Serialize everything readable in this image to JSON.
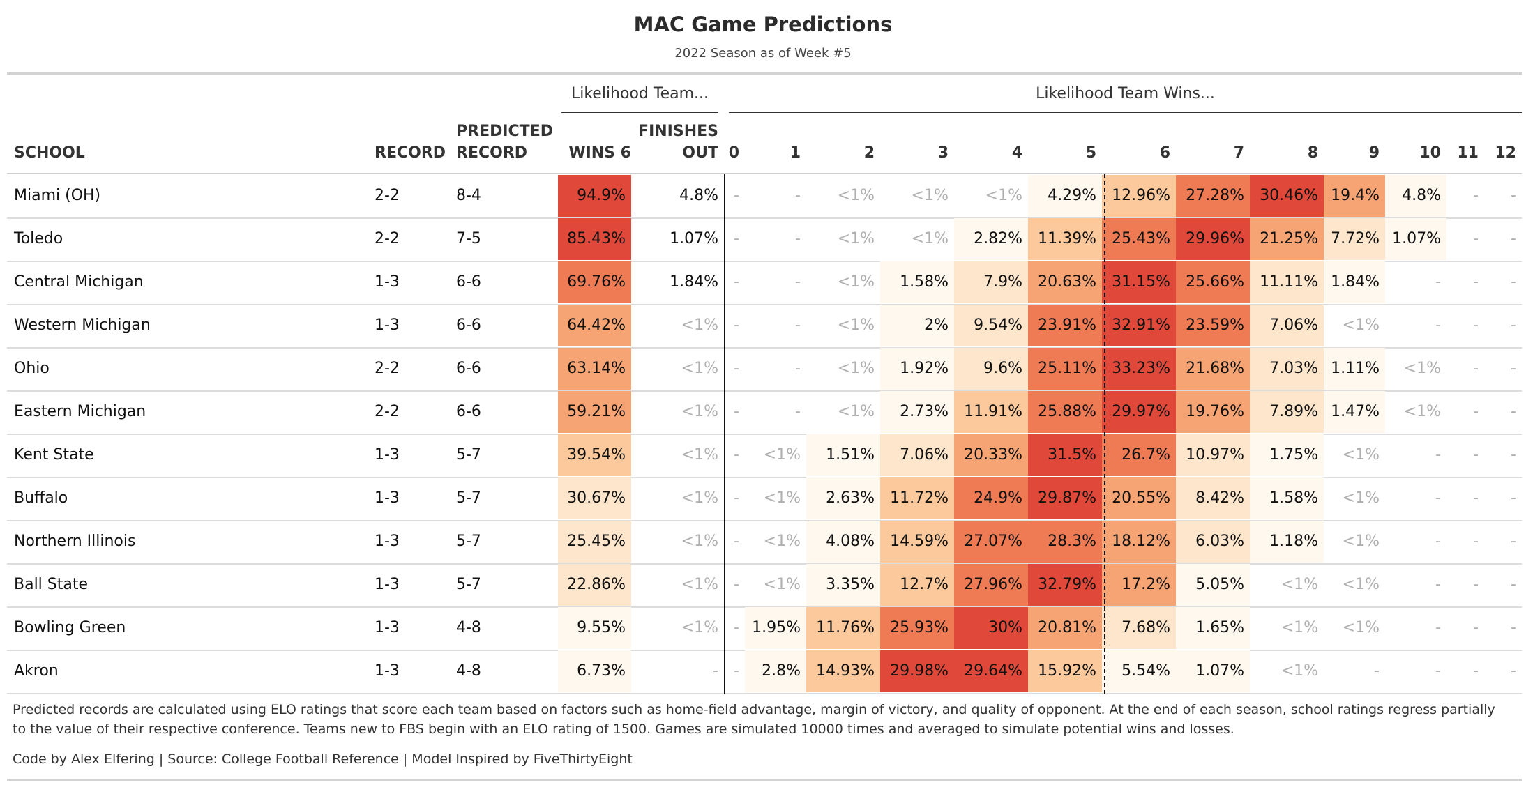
{
  "chart_data": {
    "type": "table",
    "title": "MAC Game Predictions",
    "subtitle": "2022 Season as of Week #5",
    "spanners": {
      "team": "Likelihood Team...",
      "wins": "Likelihood Team Wins..."
    },
    "headers": {
      "school": "SCHOOL",
      "record": "RECORD",
      "predicted_line1": "PREDICTED",
      "predicted_line2": "RECORD",
      "wins6": "WINS 6",
      "finishes_line1": "FINISHES",
      "finishes_line2": "OUT",
      "win_counts": [
        "0",
        "1",
        "2",
        "3",
        "4",
        "5",
        "6",
        "7",
        "8",
        "9",
        "10",
        "11",
        "12"
      ]
    },
    "colors": {
      "scale": [
        "#fff8ee",
        "#fde6cc",
        "#fbc99b",
        "#f6a474",
        "#ef7b55",
        "#e0493a"
      ],
      "accent_max": "#e0493a"
    },
    "rows": [
      {
        "school": "Miami (OH)",
        "record": "2-2",
        "predicted": "8-4",
        "wins6": {
          "text": "94.9%",
          "value": 94.9
        },
        "finishes": {
          "text": "4.8%",
          "value": 4.8
        },
        "wins": [
          {
            "text": "-",
            "value": null
          },
          {
            "text": "-",
            "value": null
          },
          {
            "text": "<1%",
            "value": 0.3
          },
          {
            "text": "<1%",
            "value": 0.3
          },
          {
            "text": "<1%",
            "value": 0.5
          },
          {
            "text": "4.29%",
            "value": 4.29
          },
          {
            "text": "12.96%",
            "value": 12.96
          },
          {
            "text": "27.28%",
            "value": 27.28
          },
          {
            "text": "30.46%",
            "value": 30.46
          },
          {
            "text": "19.4%",
            "value": 19.4
          },
          {
            "text": "4.8%",
            "value": 4.8
          },
          {
            "text": "-",
            "value": null
          },
          {
            "text": "-",
            "value": null
          }
        ]
      },
      {
        "school": "Toledo",
        "record": "2-2",
        "predicted": "7-5",
        "wins6": {
          "text": "85.43%",
          "value": 85.43
        },
        "finishes": {
          "text": "1.07%",
          "value": 1.07
        },
        "wins": [
          {
            "text": "-",
            "value": null
          },
          {
            "text": "-",
            "value": null
          },
          {
            "text": "<1%",
            "value": 0.3
          },
          {
            "text": "<1%",
            "value": 0.3
          },
          {
            "text": "2.82%",
            "value": 2.82
          },
          {
            "text": "11.39%",
            "value": 11.39
          },
          {
            "text": "25.43%",
            "value": 25.43
          },
          {
            "text": "29.96%",
            "value": 29.96
          },
          {
            "text": "21.25%",
            "value": 21.25
          },
          {
            "text": "7.72%",
            "value": 7.72
          },
          {
            "text": "1.07%",
            "value": 1.07
          },
          {
            "text": "-",
            "value": null
          },
          {
            "text": "-",
            "value": null
          }
        ]
      },
      {
        "school": "Central Michigan",
        "record": "1-3",
        "predicted": "6-6",
        "wins6": {
          "text": "69.76%",
          "value": 69.76
        },
        "finishes": {
          "text": "1.84%",
          "value": 1.84
        },
        "wins": [
          {
            "text": "-",
            "value": null
          },
          {
            "text": "-",
            "value": null
          },
          {
            "text": "<1%",
            "value": 0.3
          },
          {
            "text": "1.58%",
            "value": 1.58
          },
          {
            "text": "7.9%",
            "value": 7.9
          },
          {
            "text": "20.63%",
            "value": 20.63
          },
          {
            "text": "31.15%",
            "value": 31.15
          },
          {
            "text": "25.66%",
            "value": 25.66
          },
          {
            "text": "11.11%",
            "value": 11.11
          },
          {
            "text": "1.84%",
            "value": 1.84
          },
          {
            "text": "-",
            "value": null
          },
          {
            "text": "-",
            "value": null
          },
          {
            "text": "-",
            "value": null
          }
        ]
      },
      {
        "school": "Western Michigan",
        "record": "1-3",
        "predicted": "6-6",
        "wins6": {
          "text": "64.42%",
          "value": 64.42
        },
        "finishes": {
          "text": "<1%",
          "value": 0.3
        },
        "wins": [
          {
            "text": "-",
            "value": null
          },
          {
            "text": "-",
            "value": null
          },
          {
            "text": "<1%",
            "value": 0.3
          },
          {
            "text": "2%",
            "value": 2
          },
          {
            "text": "9.54%",
            "value": 9.54
          },
          {
            "text": "23.91%",
            "value": 23.91
          },
          {
            "text": "32.91%",
            "value": 32.91
          },
          {
            "text": "23.59%",
            "value": 23.59
          },
          {
            "text": "7.06%",
            "value": 7.06
          },
          {
            "text": "<1%",
            "value": 0.3
          },
          {
            "text": "-",
            "value": null
          },
          {
            "text": "-",
            "value": null
          },
          {
            "text": "-",
            "value": null
          }
        ]
      },
      {
        "school": "Ohio",
        "record": "2-2",
        "predicted": "6-6",
        "wins6": {
          "text": "63.14%",
          "value": 63.14
        },
        "finishes": {
          "text": "<1%",
          "value": 0.3
        },
        "wins": [
          {
            "text": "-",
            "value": null
          },
          {
            "text": "-",
            "value": null
          },
          {
            "text": "<1%",
            "value": 0.3
          },
          {
            "text": "1.92%",
            "value": 1.92
          },
          {
            "text": "9.6%",
            "value": 9.6
          },
          {
            "text": "25.11%",
            "value": 25.11
          },
          {
            "text": "33.23%",
            "value": 33.23
          },
          {
            "text": "21.68%",
            "value": 21.68
          },
          {
            "text": "7.03%",
            "value": 7.03
          },
          {
            "text": "1.11%",
            "value": 1.11
          },
          {
            "text": "<1%",
            "value": 0.3
          },
          {
            "text": "-",
            "value": null
          },
          {
            "text": "-",
            "value": null
          }
        ]
      },
      {
        "school": "Eastern Michigan",
        "record": "2-2",
        "predicted": "6-6",
        "wins6": {
          "text": "59.21%",
          "value": 59.21
        },
        "finishes": {
          "text": "<1%",
          "value": 0.3
        },
        "wins": [
          {
            "text": "-",
            "value": null
          },
          {
            "text": "-",
            "value": null
          },
          {
            "text": "<1%",
            "value": 0.3
          },
          {
            "text": "2.73%",
            "value": 2.73
          },
          {
            "text": "11.91%",
            "value": 11.91
          },
          {
            "text": "25.88%",
            "value": 25.88
          },
          {
            "text": "29.97%",
            "value": 29.97
          },
          {
            "text": "19.76%",
            "value": 19.76
          },
          {
            "text": "7.89%",
            "value": 7.89
          },
          {
            "text": "1.47%",
            "value": 1.47
          },
          {
            "text": "<1%",
            "value": 0.3
          },
          {
            "text": "-",
            "value": null
          },
          {
            "text": "-",
            "value": null
          }
        ]
      },
      {
        "school": "Kent State",
        "record": "1-3",
        "predicted": "5-7",
        "wins6": {
          "text": "39.54%",
          "value": 39.54
        },
        "finishes": {
          "text": "<1%",
          "value": 0.3
        },
        "wins": [
          {
            "text": "-",
            "value": null
          },
          {
            "text": "<1%",
            "value": 0.3
          },
          {
            "text": "1.51%",
            "value": 1.51
          },
          {
            "text": "7.06%",
            "value": 7.06
          },
          {
            "text": "20.33%",
            "value": 20.33
          },
          {
            "text": "31.5%",
            "value": 31.5
          },
          {
            "text": "26.7%",
            "value": 26.7
          },
          {
            "text": "10.97%",
            "value": 10.97
          },
          {
            "text": "1.75%",
            "value": 1.75
          },
          {
            "text": "<1%",
            "value": 0.3
          },
          {
            "text": "-",
            "value": null
          },
          {
            "text": "-",
            "value": null
          },
          {
            "text": "-",
            "value": null
          }
        ]
      },
      {
        "school": "Buffalo",
        "record": "1-3",
        "predicted": "5-7",
        "wins6": {
          "text": "30.67%",
          "value": 30.67
        },
        "finishes": {
          "text": "<1%",
          "value": 0.3
        },
        "wins": [
          {
            "text": "-",
            "value": null
          },
          {
            "text": "<1%",
            "value": 0.3
          },
          {
            "text": "2.63%",
            "value": 2.63
          },
          {
            "text": "11.72%",
            "value": 11.72
          },
          {
            "text": "24.9%",
            "value": 24.9
          },
          {
            "text": "29.87%",
            "value": 29.87
          },
          {
            "text": "20.55%",
            "value": 20.55
          },
          {
            "text": "8.42%",
            "value": 8.42
          },
          {
            "text": "1.58%",
            "value": 1.58
          },
          {
            "text": "<1%",
            "value": 0.3
          },
          {
            "text": "-",
            "value": null
          },
          {
            "text": "-",
            "value": null
          },
          {
            "text": "-",
            "value": null
          }
        ]
      },
      {
        "school": "Northern Illinois",
        "record": "1-3",
        "predicted": "5-7",
        "wins6": {
          "text": "25.45%",
          "value": 25.45
        },
        "finishes": {
          "text": "<1%",
          "value": 0.3
        },
        "wins": [
          {
            "text": "-",
            "value": null
          },
          {
            "text": "<1%",
            "value": 0.3
          },
          {
            "text": "4.08%",
            "value": 4.08
          },
          {
            "text": "14.59%",
            "value": 14.59
          },
          {
            "text": "27.07%",
            "value": 27.07
          },
          {
            "text": "28.3%",
            "value": 28.3
          },
          {
            "text": "18.12%",
            "value": 18.12
          },
          {
            "text": "6.03%",
            "value": 6.03
          },
          {
            "text": "1.18%",
            "value": 1.18
          },
          {
            "text": "<1%",
            "value": 0.3
          },
          {
            "text": "-",
            "value": null
          },
          {
            "text": "-",
            "value": null
          },
          {
            "text": "-",
            "value": null
          }
        ]
      },
      {
        "school": "Ball State",
        "record": "1-3",
        "predicted": "5-7",
        "wins6": {
          "text": "22.86%",
          "value": 22.86
        },
        "finishes": {
          "text": "<1%",
          "value": 0.3
        },
        "wins": [
          {
            "text": "-",
            "value": null
          },
          {
            "text": "<1%",
            "value": 0.3
          },
          {
            "text": "3.35%",
            "value": 3.35
          },
          {
            "text": "12.7%",
            "value": 12.7
          },
          {
            "text": "27.96%",
            "value": 27.96
          },
          {
            "text": "32.79%",
            "value": 32.79
          },
          {
            "text": "17.2%",
            "value": 17.2
          },
          {
            "text": "5.05%",
            "value": 5.05
          },
          {
            "text": "<1%",
            "value": 0.3
          },
          {
            "text": "<1%",
            "value": 0.3
          },
          {
            "text": "-",
            "value": null
          },
          {
            "text": "-",
            "value": null
          },
          {
            "text": "-",
            "value": null
          }
        ]
      },
      {
        "school": "Bowling Green",
        "record": "1-3",
        "predicted": "4-8",
        "wins6": {
          "text": "9.55%",
          "value": 9.55
        },
        "finishes": {
          "text": "<1%",
          "value": 0.3
        },
        "wins": [
          {
            "text": "-",
            "value": null
          },
          {
            "text": "1.95%",
            "value": 1.95
          },
          {
            "text": "11.76%",
            "value": 11.76
          },
          {
            "text": "25.93%",
            "value": 25.93
          },
          {
            "text": "30%",
            "value": 30
          },
          {
            "text": "20.81%",
            "value": 20.81
          },
          {
            "text": "7.68%",
            "value": 7.68
          },
          {
            "text": "1.65%",
            "value": 1.65
          },
          {
            "text": "<1%",
            "value": 0.3
          },
          {
            "text": "<1%",
            "value": 0.3
          },
          {
            "text": "-",
            "value": null
          },
          {
            "text": "-",
            "value": null
          },
          {
            "text": "-",
            "value": null
          }
        ]
      },
      {
        "school": "Akron",
        "record": "1-3",
        "predicted": "4-8",
        "wins6": {
          "text": "6.73%",
          "value": 6.73
        },
        "finishes": {
          "text": "-",
          "value": null
        },
        "wins": [
          {
            "text": "-",
            "value": null
          },
          {
            "text": "2.8%",
            "value": 2.8
          },
          {
            "text": "14.93%",
            "value": 14.93
          },
          {
            "text": "29.98%",
            "value": 29.98
          },
          {
            "text": "29.64%",
            "value": 29.64
          },
          {
            "text": "15.92%",
            "value": 15.92
          },
          {
            "text": "5.54%",
            "value": 5.54
          },
          {
            "text": "1.07%",
            "value": 1.07
          },
          {
            "text": "<1%",
            "value": 0.3
          },
          {
            "text": "-",
            "value": null
          },
          {
            "text": "-",
            "value": null
          },
          {
            "text": "-",
            "value": null
          },
          {
            "text": "-",
            "value": null
          }
        ]
      }
    ]
  },
  "footnote": "Predicted records are calculated using ELO ratings that score each team based on factors such as home-field advantage, margin of victory, and quality of opponent. At the end of each season, school ratings regress partially to the value of their respective conference. Teams new to FBS begin with an ELO rating of 1500. Games are simulated 10000 times and averaged to simulate potential wins and losses.",
  "credits": "Code by Alex Elfering | Source: College Football Reference | Model Inspired by FiveThirtyEight"
}
